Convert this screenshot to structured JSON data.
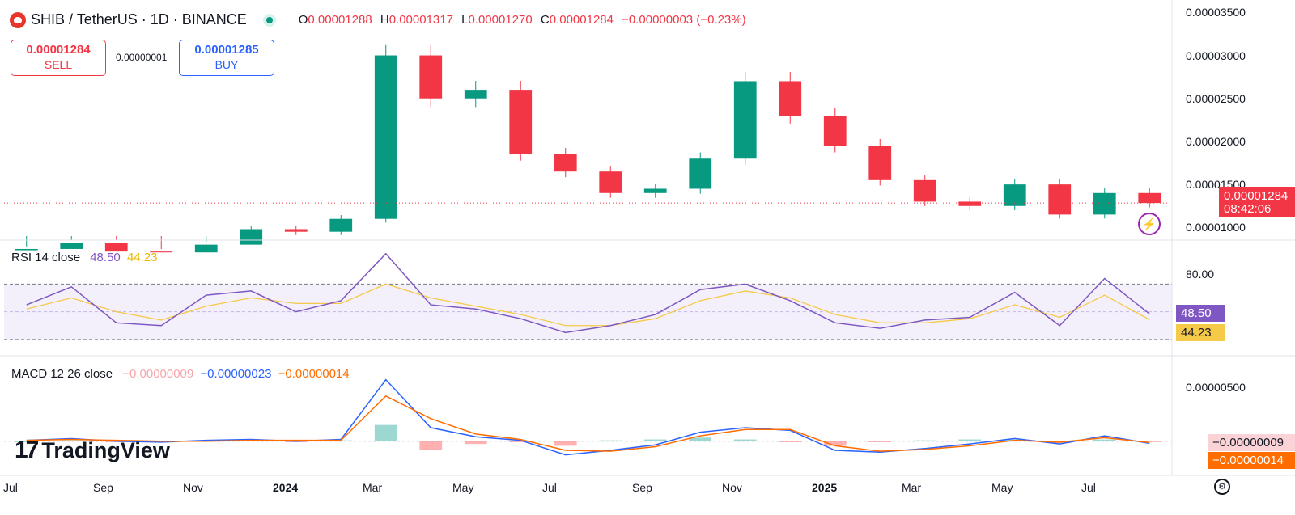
{
  "header": {
    "symbol": "SHIB / TetherUS · 1D · BINANCE",
    "ohlc": {
      "o_label": "O",
      "o": "0.00001288",
      "h_label": "H",
      "h": "0.00001317",
      "l_label": "L",
      "l": "0.00001270",
      "c_label": "C",
      "c": "0.00001284",
      "change": "−0.00000003 (−0.23%)"
    }
  },
  "trade": {
    "sell_price": "0.00001284",
    "sell_label": "SELL",
    "spread": "0.00000001",
    "buy_price": "0.00001285",
    "buy_label": "BUY"
  },
  "price_axis": {
    "ticks": [
      "0.00003500",
      "0.00003000",
      "0.00002500",
      "0.00002000",
      "0.00001500",
      "0.00001000"
    ],
    "current_price": "0.00001284",
    "countdown": "08:42:06"
  },
  "rsi": {
    "title": "RSI 14 close",
    "value": "48.50",
    "ma_value": "44.23",
    "axis_tick": "80.00"
  },
  "macd": {
    "title": "MACD 12 26 close",
    "hist_value": "−0.00000009",
    "macd_value": "−0.00000023",
    "signal_value": "−0.00000014",
    "axis_tick": "0.00000500",
    "badge_hist": "−0.00000009",
    "badge_signal": "−0.00000014"
  },
  "time_axis": [
    "Jul",
    "Sep",
    "Nov",
    "2024",
    "Mar",
    "May",
    "Jul",
    "Sep",
    "Nov",
    "2025",
    "Mar",
    "May",
    "Jul"
  ],
  "brand": {
    "name": "TradingView"
  },
  "colors": {
    "up": "#089981",
    "down": "#f23645",
    "rsi": "#7e57c2",
    "rsi_ma": "#f7c948",
    "macd": "#2962ff",
    "signal": "#ff6d00",
    "bg_band": "#f3f0fb"
  },
  "chart_data": [
    {
      "type": "candlestick",
      "series_name": "SHIB / TetherUS",
      "x": [
        "2023-07",
        "2023-08",
        "2023-09",
        "2023-10",
        "2023-11",
        "2023-12",
        "2024-01",
        "2024-02",
        "2024-03",
        "2024-04",
        "2024-05",
        "2024-06",
        "2024-07",
        "2024-08",
        "2024-09",
        "2024-10",
        "2024-11",
        "2024-12",
        "2025-01",
        "2025-02",
        "2025-03",
        "2025-04",
        "2025-05",
        "2025-06",
        "2025-07",
        "2025-08"
      ],
      "close": [
        7.5e-06,
        8.2e-06,
        7.2e-06,
        7.1e-06,
        8e-06,
        9.8e-06,
        9.5e-06,
        1.1e-05,
        3e-05,
        2.5e-05,
        2.6e-05,
        1.85e-05,
        1.65e-05,
        1.4e-05,
        1.45e-05,
        1.8e-05,
        2.7e-05,
        2.3e-05,
        1.95e-05,
        1.55e-05,
        1.3e-05,
        1.25e-05,
        1.5e-05,
        1.15e-05,
        1.4e-05,
        1.284e-05
      ],
      "ylim": [
        9e-06,
        3.55e-05
      ]
    },
    {
      "type": "line",
      "series_name": "RSI 14 close",
      "x": [
        "2023-07",
        "2023-08",
        "2023-09",
        "2023-10",
        "2023-11",
        "2023-12",
        "2024-01",
        "2024-02",
        "2024-03",
        "2024-04",
        "2024-05",
        "2024-06",
        "2024-07",
        "2024-08",
        "2024-09",
        "2024-10",
        "2024-11",
        "2024-12",
        "2025-01",
        "2025-02",
        "2025-03",
        "2025-04",
        "2025-05",
        "2025-06",
        "2025-07",
        "2025-08"
      ],
      "values": [
        55,
        68,
        42,
        40,
        62,
        65,
        50,
        58,
        92,
        55,
        52,
        45,
        35,
        40,
        48,
        66,
        70,
        58,
        42,
        38,
        44,
        46,
        64,
        40,
        74,
        48.5
      ],
      "ma": [
        52,
        60,
        50,
        44,
        54,
        60,
        56,
        56,
        70,
        60,
        54,
        48,
        40,
        40,
        45,
        58,
        65,
        60,
        48,
        42,
        42,
        45,
        55,
        46,
        62,
        44.23
      ],
      "bands": [
        30,
        70
      ],
      "ylim": [
        20,
        100
      ]
    },
    {
      "type": "line",
      "series_name": "MACD 12 26 close",
      "x": [
        "2023-07",
        "2023-08",
        "2023-09",
        "2023-10",
        "2023-11",
        "2023-12",
        "2024-01",
        "2024-02",
        "2024-03",
        "2024-04",
        "2024-05",
        "2024-06",
        "2024-07",
        "2024-08",
        "2024-09",
        "2024-10",
        "2024-11",
        "2024-12",
        "2025-01",
        "2025-02",
        "2025-03",
        "2025-04",
        "2025-05",
        "2025-06",
        "2025-07",
        "2025-08"
      ],
      "macd": [
        1e-07,
        3e-07,
        0.0,
        -1e-07,
        1e-07,
        2e-07,
        0.0,
        2e-07,
        6.8e-06,
        1.5e-06,
        5e-07,
        1e-07,
        -1.5e-06,
        -1e-06,
        -4e-07,
        1e-06,
        1.5e-06,
        1.2e-06,
        -1e-06,
        -1.2e-06,
        -8e-07,
        -3e-07,
        3e-07,
        -3e-07,
        6e-07,
        -2.3e-07
      ],
      "signal": [
        1e-07,
        2e-07,
        1e-07,
        0.0,
        0.0,
        1e-07,
        1e-07,
        1e-07,
        5e-06,
        2.5e-06,
        8e-07,
        2e-07,
        -1e-06,
        -1.1e-06,
        -6e-07,
        6e-07,
        1.3e-06,
        1.3e-06,
        -5e-07,
        -1.1e-06,
        -9e-07,
        -5e-07,
        1e-07,
        -1e-07,
        4e-07,
        -1.4e-07
      ],
      "ylim": [
        -3.5e-06,
        9e-06
      ]
    }
  ]
}
